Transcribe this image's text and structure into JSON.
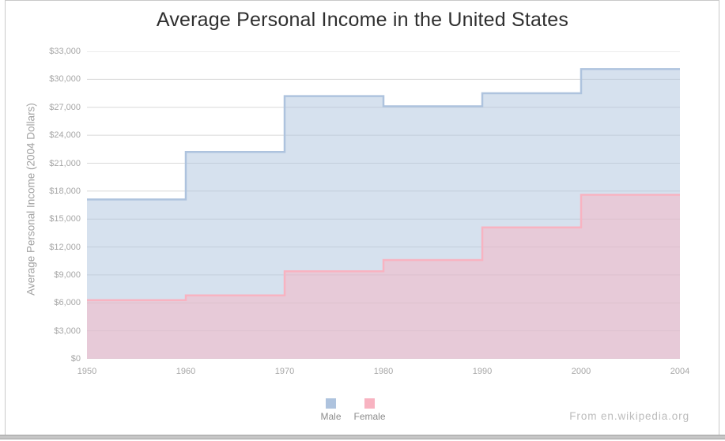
{
  "title": "Average Personal Income in the United States",
  "attribution": "From en.wikipedia.org",
  "chart_data": {
    "type": "area",
    "subtype": "step-after",
    "title": "Average Personal Income in the United States",
    "xlabel": "",
    "ylabel": "Average Personal Income (2004 Dollars)",
    "x": [
      1950,
      1960,
      1970,
      1980,
      1990,
      2000,
      2004
    ],
    "x_tick_labels": [
      "1950",
      "1960",
      "1970",
      "1980",
      "1990",
      "2000",
      "2004"
    ],
    "series": [
      {
        "name": "Male",
        "color": "#aec3de",
        "values": [
          17100,
          22200,
          28200,
          27100,
          28500,
          31100,
          31100
        ]
      },
      {
        "name": "Female",
        "color": "#f8b3c1",
        "values": [
          6300,
          6800,
          9400,
          10600,
          14100,
          17600,
          17600
        ]
      }
    ],
    "ylim": [
      0,
      33000
    ],
    "y_tick_values": [
      0,
      3000,
      6000,
      9000,
      12000,
      15000,
      18000,
      21000,
      24000,
      27000,
      30000,
      33000
    ],
    "y_tick_labels": [
      "$0",
      "$3,000",
      "$6,000",
      "$9,000",
      "$12,000",
      "$15,000",
      "$18,000",
      "$21,000",
      "$24,000",
      "$27,000",
      "$30,000",
      "$33,000"
    ],
    "grid": true,
    "legend_position": "bottom",
    "fill_opacity": 0.5,
    "colors": {
      "grid": "#d8d8d8",
      "axis_text": "#a6a6a6",
      "title_text": "#2f2f2f",
      "y_axis_title_text": "#a2a2a2",
      "legend_text": "#8c8c8c",
      "attribution_text": "#bcbcbc"
    }
  }
}
